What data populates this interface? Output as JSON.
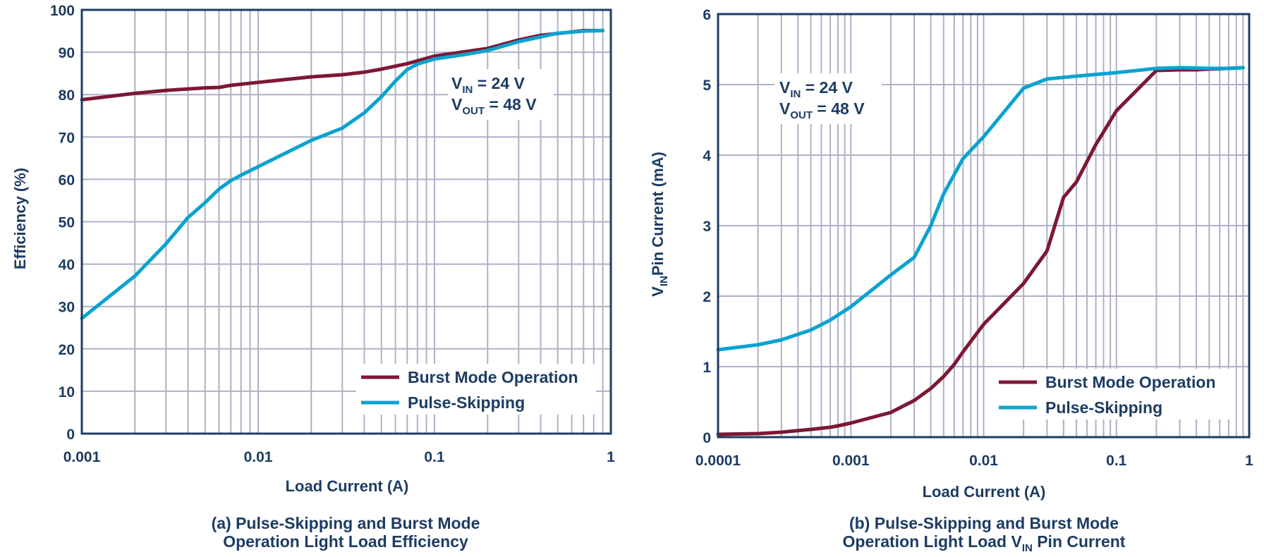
{
  "colors": {
    "burst": "#7c1834",
    "pulse": "#0aa3cf",
    "grid": "#aeb0c6",
    "frame": "#1d3c63",
    "text": "#1d3c63"
  },
  "chart_data": [
    {
      "type": "line",
      "x_scale": "log",
      "xlim": [
        0.001,
        1
      ],
      "ylim": [
        0,
        100
      ],
      "xlabel": "Load Current (A)",
      "ylabel": "Efficiency (%)",
      "x_ticks": [
        {
          "value": 0.001,
          "label": "0.001"
        },
        {
          "value": 0.01,
          "label": "0.01"
        },
        {
          "value": 0.1,
          "label": "0.1"
        },
        {
          "value": 1,
          "label": "1"
        }
      ],
      "y_ticks": [
        0,
        10,
        20,
        30,
        40,
        50,
        60,
        70,
        80,
        90,
        100
      ],
      "grid": true,
      "legend_position": "bottom-right",
      "annotation": {
        "line1_main": "V",
        "line1_sub": "IN",
        "line1_rest": " = 24 V",
        "line2_main": "V",
        "line2_sub": "OUT",
        "line2_rest": " = 48 V"
      },
      "caption": {
        "line1": "(a) Pulse-Skipping and Burst Mode",
        "line2": "Operation Light Load Efficiency"
      },
      "series": [
        {
          "name": "Burst Mode Operation",
          "color": "#7c1834",
          "x": [
            0.001,
            0.002,
            0.003,
            0.005,
            0.006,
            0.007,
            0.01,
            0.02,
            0.03,
            0.04,
            0.05,
            0.07,
            0.1,
            0.2,
            0.3,
            0.4,
            0.6,
            0.7,
            0.9
          ],
          "y": [
            78.8,
            80.3,
            81.0,
            81.6,
            81.7,
            82.2,
            82.9,
            84.2,
            84.7,
            85.3,
            86.0,
            87.3,
            89.1,
            90.9,
            92.9,
            94.0,
            94.8,
            95.1,
            95.1
          ]
        },
        {
          "name": "Pulse-Skipping",
          "color": "#0aa3cf",
          "x": [
            0.001,
            0.002,
            0.003,
            0.004,
            0.005,
            0.006,
            0.007,
            0.008,
            0.01,
            0.02,
            0.03,
            0.04,
            0.05,
            0.06,
            0.07,
            0.08,
            0.1,
            0.15,
            0.2,
            0.3,
            0.5,
            0.7,
            0.9
          ],
          "y": [
            27.2,
            37.2,
            44.8,
            51.0,
            54.5,
            57.7,
            59.7,
            61.0,
            63.0,
            69.2,
            72.1,
            75.7,
            79.5,
            83.2,
            85.9,
            87.2,
            88.4,
            89.5,
            90.4,
            92.5,
            94.5,
            95.0,
            95.1
          ]
        }
      ]
    },
    {
      "type": "line",
      "x_scale": "log",
      "xlim": [
        0.0001,
        1
      ],
      "ylim": [
        0,
        6
      ],
      "xlabel": "Load Current (A)",
      "ylabel_main": "V",
      "ylabel_sub": "IN",
      "ylabel_rest": "Pin Current (mA)",
      "x_ticks": [
        {
          "value": 0.0001,
          "label": "0.0001"
        },
        {
          "value": 0.001,
          "label": "0.001"
        },
        {
          "value": 0.01,
          "label": "0.01"
        },
        {
          "value": 0.1,
          "label": "0.1"
        },
        {
          "value": 1,
          "label": "1"
        }
      ],
      "y_ticks": [
        0,
        1,
        2,
        3,
        4,
        5,
        6
      ],
      "grid": true,
      "legend_position": "bottom-right",
      "annotation": {
        "line1_main": "V",
        "line1_sub": "IN",
        "line1_rest": " = 24 V",
        "line2_main": "V",
        "line2_sub": "OUT",
        "line2_rest": " = 48 V"
      },
      "caption": {
        "line1": "(b) Pulse-Skipping and Burst Mode",
        "line2_main": "Operation Light Load V",
        "line2_sub": "IN",
        "line2_rest": " Pin Current"
      },
      "series": [
        {
          "name": "Burst Mode Operation",
          "color": "#7c1834",
          "x": [
            0.0001,
            0.0002,
            0.0003,
            0.0005,
            0.0007,
            0.0008,
            0.001,
            0.002,
            0.003,
            0.004,
            0.005,
            0.006,
            0.007,
            0.01,
            0.02,
            0.03,
            0.04,
            0.05,
            0.07,
            0.1,
            0.2,
            0.3,
            0.4,
            0.5,
            0.7,
            0.9
          ],
          "y": [
            0.04,
            0.05,
            0.07,
            0.11,
            0.14,
            0.16,
            0.2,
            0.35,
            0.52,
            0.69,
            0.86,
            1.03,
            1.21,
            1.6,
            2.18,
            2.64,
            3.4,
            3.62,
            4.15,
            4.63,
            5.2,
            5.21,
            5.21,
            5.22,
            5.23,
            5.24
          ]
        },
        {
          "name": "Pulse-Skipping",
          "color": "#0aa3cf",
          "x": [
            0.0001,
            0.0002,
            0.0003,
            0.0005,
            0.0007,
            0.001,
            0.002,
            0.003,
            0.004,
            0.005,
            0.007,
            0.01,
            0.02,
            0.03,
            0.05,
            0.1,
            0.2,
            0.3,
            0.5,
            0.7,
            0.9
          ],
          "y": [
            1.24,
            1.31,
            1.38,
            1.52,
            1.66,
            1.85,
            2.3,
            2.55,
            3.0,
            3.45,
            3.95,
            4.26,
            4.95,
            5.08,
            5.12,
            5.17,
            5.23,
            5.24,
            5.23,
            5.23,
            5.24
          ]
        }
      ]
    }
  ]
}
